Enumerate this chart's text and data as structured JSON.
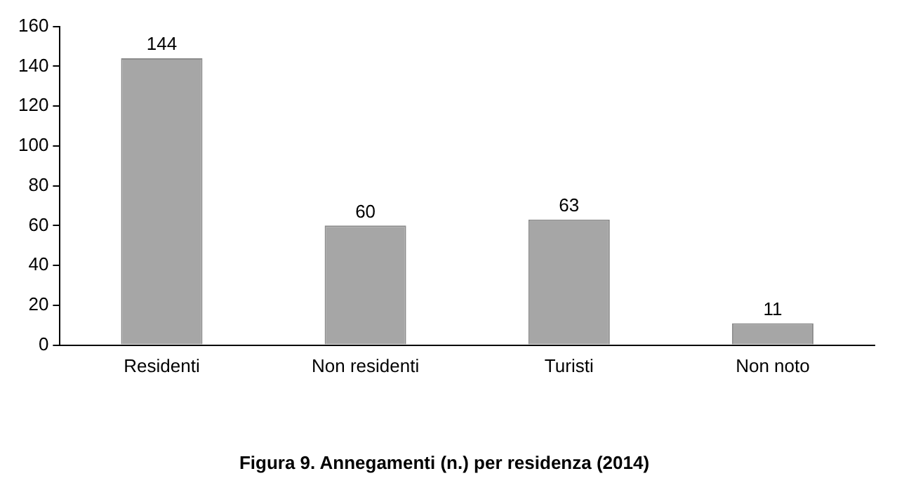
{
  "chart_data": {
    "type": "bar",
    "title": "Figura 9. Annegamenti (n.) per residenza (2014)",
    "categories": [
      "Residenti",
      "Non residenti",
      "Turisti",
      "Non noto"
    ],
    "values": [
      144,
      60,
      63,
      11
    ],
    "color": "#a6a6a6",
    "ylim": [
      0,
      160
    ],
    "yticks": [
      0,
      20,
      40,
      60,
      80,
      100,
      120,
      140,
      160
    ],
    "grid": false,
    "data_labels": true
  }
}
